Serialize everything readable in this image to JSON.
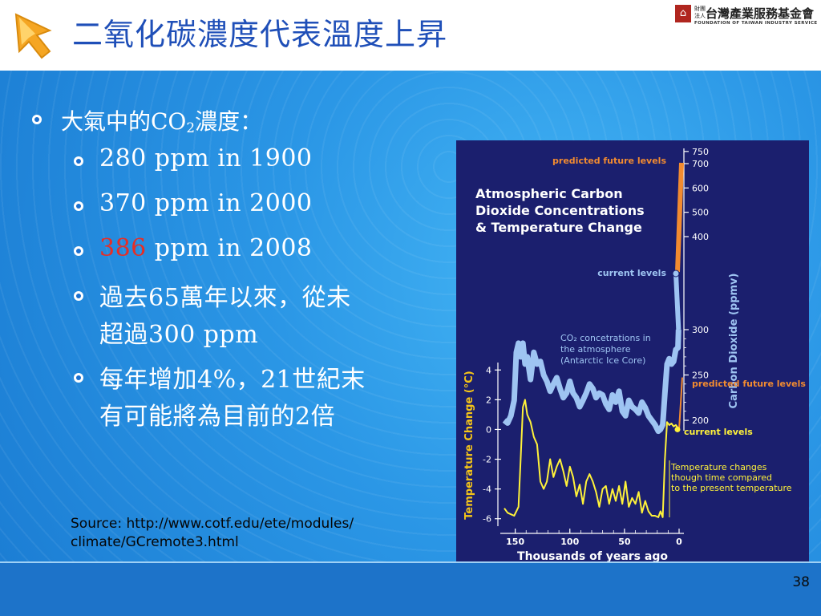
{
  "slide": {
    "title": "二氧化碳濃度代表溫度上昇",
    "page_number": "38"
  },
  "logo": {
    "small_text": "財團法人",
    "name": "台灣產業服務基金會",
    "english": "FOUNDATION OF TAIWAN INDUSTRY SERVICE"
  },
  "bullets": {
    "main": {
      "prefix": "大氣中的CO",
      "sub": "2",
      "suffix": "濃度："
    },
    "items": [
      {
        "lead": "",
        "text": "280 ppm in 1900"
      },
      {
        "lead": "",
        "text": "370 ppm in 2000"
      },
      {
        "lead": "386",
        "text": " ppm in 2008"
      },
      {
        "line1": "過去65萬年以來，從未",
        "line2": "超過300 ppm"
      },
      {
        "line1": "每年增加4%，21世紀末",
        "line2": "有可能將為目前的2倍"
      }
    ]
  },
  "source": {
    "line1": "Source: http://www.cotf.edu/ete/modules/",
    "line2": "climate/GCremote3.html"
  },
  "chart_data": {
    "type": "line",
    "title": [
      "Atmospheric Carbon",
      "Dioxide Concentrations",
      "& Temperature Change"
    ],
    "xlabel": "Thousands of years ago",
    "x_ticks": [
      "150",
      "100",
      "50",
      "0"
    ],
    "x_range": [
      160,
      0
    ],
    "y_left_label": "Temperature Change (°C)",
    "y_left_ticks": [
      "4",
      "2",
      "0",
      "-2",
      "-4",
      "-6"
    ],
    "y_left_range": [
      -6.5,
      4.5
    ],
    "y_right_label": "Carbon Dioxide (ppmv)",
    "y_right_ticks_upper": [
      "750",
      "700",
      "600",
      "500",
      "400"
    ],
    "y_right_ticks_lower": [
      "300",
      "250",
      "200"
    ],
    "annotations": {
      "co2_future": "predicted future levels",
      "co2_current": "current levels",
      "co2_series_label": [
        "CO₂ concetrations in",
        "the atmosphere",
        "(Antarctic Ice Core)"
      ],
      "temp_future": "predicted future levels",
      "temp_current": "current levels",
      "temp_note": [
        "Temperature changes",
        "though time compared",
        "to the present temperature"
      ]
    },
    "series": [
      {
        "name": "CO₂ concetrations in the atmosphere (Antarctic Ice Core)",
        "color": "#9ec4f2",
        "unit": "ppmv",
        "x": [
          160,
          157,
          154,
          151,
          149,
          147,
          145,
          143,
          141,
          139,
          136,
          133,
          130,
          127,
          124,
          121,
          118,
          115,
          112,
          109,
          106,
          103,
          100,
          97,
          94,
          91,
          88,
          85,
          82,
          79,
          76,
          73,
          70,
          67,
          64,
          61,
          58,
          55,
          52,
          49,
          46,
          43,
          40,
          37,
          34,
          31,
          28,
          25,
          22,
          19,
          17,
          15,
          13,
          11,
          9,
          7,
          5,
          3,
          1,
          0.5
        ],
        "values": [
          200,
          197,
          205,
          222,
          275,
          285,
          270,
          285,
          262,
          270,
          245,
          275,
          262,
          265,
          250,
          243,
          232,
          240,
          247,
          235,
          225,
          230,
          243,
          230,
          225,
          215,
          222,
          230,
          240,
          235,
          225,
          230,
          228,
          218,
          212,
          228,
          220,
          232,
          210,
          205,
          222,
          215,
          212,
          208,
          220,
          214,
          205,
          200,
          195,
          188,
          190,
          195,
          230,
          262,
          268,
          262,
          265,
          278,
          280,
          300
        ]
      },
      {
        "name": "Temperature change",
        "color": "#fff23a",
        "unit": "°C",
        "x": [
          160,
          157,
          154,
          151,
          149,
          147,
          145,
          143,
          141,
          139,
          136,
          133,
          130,
          127,
          124,
          121,
          118,
          115,
          112,
          109,
          106,
          103,
          100,
          97,
          94,
          91,
          88,
          85,
          82,
          79,
          76,
          73,
          70,
          67,
          64,
          61,
          58,
          55,
          52,
          49,
          46,
          43,
          40,
          37,
          34,
          31,
          28,
          25,
          22,
          19,
          17,
          15,
          13,
          11,
          9,
          7,
          5,
          3,
          1,
          0
        ],
        "values": [
          -5.3,
          -5.6,
          -5.7,
          -5.8,
          -5.5,
          -5.2,
          -2.0,
          1.5,
          2.0,
          1.0,
          0.5,
          -0.5,
          -1.0,
          -3.5,
          -4.0,
          -3.5,
          -2.0,
          -3.2,
          -2.5,
          -2.0,
          -2.8,
          -3.8,
          -2.5,
          -3.2,
          -4.5,
          -3.7,
          -5.0,
          -3.5,
          -3.0,
          -3.5,
          -4.2,
          -5.2,
          -4.0,
          -3.8,
          -5.0,
          -4.0,
          -4.8,
          -3.8,
          -5.0,
          -3.5,
          -5.2,
          -4.6,
          -5.0,
          -4.2,
          -5.6,
          -4.8,
          -5.5,
          -5.8,
          -5.8,
          -5.9,
          -5.5,
          -5.9,
          -2.0,
          0.5,
          0.3,
          0.4,
          0.2,
          0.3,
          0.1,
          0.0
        ]
      }
    ]
  }
}
